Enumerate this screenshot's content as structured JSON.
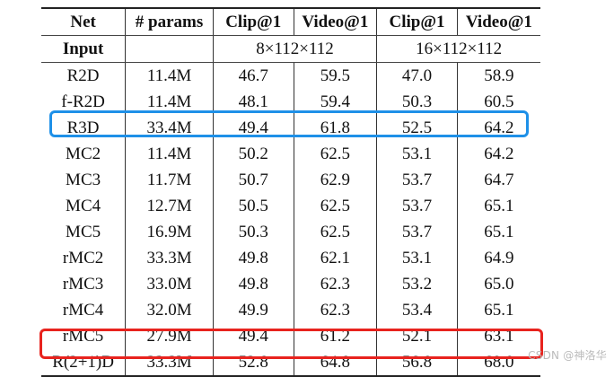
{
  "table": {
    "headers": [
      "Net",
      "# params",
      "Clip@1",
      "Video@1",
      "Clip@1",
      "Video@1"
    ],
    "input_row": {
      "label": "Input",
      "params": "",
      "input_8": "8×112×112",
      "input_16": "16×112×112"
    },
    "rows": [
      {
        "net": "R2D",
        "params": "11.4M",
        "clip8": "46.7",
        "video8": "59.5",
        "clip16": "47.0",
        "video16": "58.9"
      },
      {
        "net": "f-R2D",
        "params": "11.4M",
        "clip8": "48.1",
        "video8": "59.4",
        "clip16": "50.3",
        "video16": "60.5"
      },
      {
        "net": "R3D",
        "params": "33.4M",
        "clip8": "49.4",
        "video8": "61.8",
        "clip16": "52.5",
        "video16": "64.2"
      },
      {
        "net": "MC2",
        "params": "11.4M",
        "clip8": "50.2",
        "video8": "62.5",
        "clip16": "53.1",
        "video16": "64.2"
      },
      {
        "net": "MC3",
        "params": "11.7M",
        "clip8": "50.7",
        "video8": "62.9",
        "clip16": "53.7",
        "video16": "64.7"
      },
      {
        "net": "MC4",
        "params": "12.7M",
        "clip8": "50.5",
        "video8": "62.5",
        "clip16": "53.7",
        "video16": "65.1"
      },
      {
        "net": "MC5",
        "params": "16.9M",
        "clip8": "50.3",
        "video8": "62.5",
        "clip16": "53.7",
        "video16": "65.1"
      },
      {
        "net": "rMC2",
        "params": "33.3M",
        "clip8": "49.8",
        "video8": "62.1",
        "clip16": "53.1",
        "video16": "64.9"
      },
      {
        "net": "rMC3",
        "params": "33.0M",
        "clip8": "49.8",
        "video8": "62.3",
        "clip16": "53.2",
        "video16": "65.0"
      },
      {
        "net": "rMC4",
        "params": "32.0M",
        "clip8": "49.9",
        "video8": "62.3",
        "clip16": "53.4",
        "video16": "65.1"
      },
      {
        "net": "rMC5",
        "params": "27.9M",
        "clip8": "49.4",
        "video8": "61.2",
        "clip16": "52.1",
        "video16": "63.1"
      },
      {
        "net": "R(2+1)D",
        "params": "33.3M",
        "clip8": "52.8",
        "video8": "64.8",
        "clip16": "56.8",
        "video16": "68.0"
      }
    ]
  },
  "highlights": {
    "blue_color": "#1e90e8",
    "red_color": "#e8231e"
  },
  "watermark": "CSDN @神洛华"
}
